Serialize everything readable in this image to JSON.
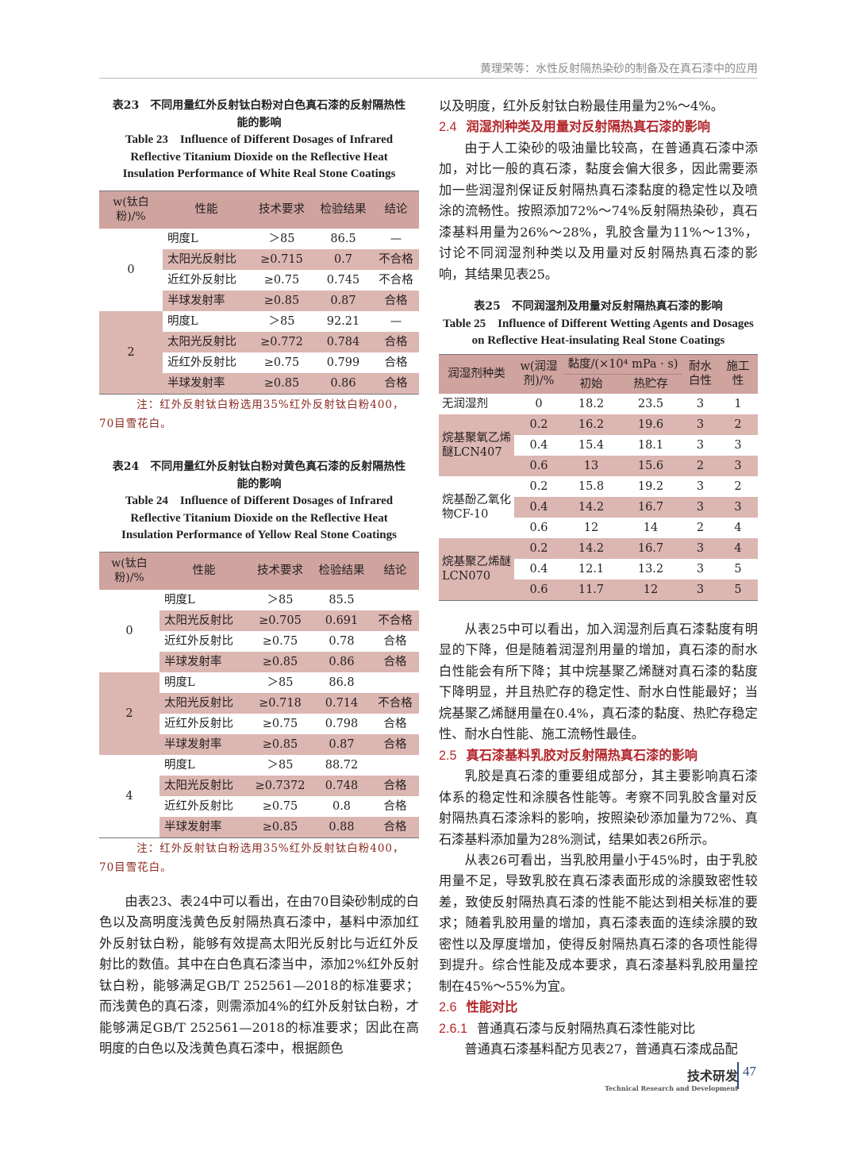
{
  "header": {
    "running_title": "黄理荣等：水性反射隔热染砂的制备及在真石漆中的应用"
  },
  "table23": {
    "caption_cn": "表23　不同用量红外反射钛白粉对白色真石漆的反射隔热性能的影响",
    "caption_en": "Table 23　Influence of Different Dosages of Infrared Reflective Titanium Dioxide on the Reflective Heat Insulation Performance of White Real Stone Coatings",
    "headers": [
      "w(钛白粉)/%",
      "性能",
      "技术要求",
      "检验结果",
      "结论"
    ],
    "groups": [
      {
        "w": "0",
        "rows": [
          [
            "明度L",
            "＞85",
            "86.5",
            "—"
          ],
          [
            "太阳光反射比",
            "≥0.715",
            "0.7",
            "不合格"
          ],
          [
            "近红外反射比",
            "≥0.75",
            "0.745",
            "不合格"
          ],
          [
            "半球发射率",
            "≥0.85",
            "0.87",
            "合格"
          ]
        ]
      },
      {
        "w": "2",
        "rows": [
          [
            "明度L",
            "＞85",
            "92.21",
            "—"
          ],
          [
            "太阳光反射比",
            "≥0.772",
            "0.784",
            "合格"
          ],
          [
            "近红外反射比",
            "≥0.75",
            "0.799",
            "合格"
          ],
          [
            "半球发射率",
            "≥0.85",
            "0.86",
            "合格"
          ]
        ]
      }
    ],
    "note": "注：红外反射钛白粉选用35%红外反射钛白粉400，70目雪花白。"
  },
  "table24": {
    "caption_cn": "表24　不同用量红外反射钛白粉对黄色真石漆的反射隔热性能的影响",
    "caption_en": "Table 24　Influence of Different Dosages of Infrared Reflective Titanium Dioxide on the Reflective Heat Insulation Performance of Yellow Real Stone Coatings",
    "headers": [
      "w(钛白粉)/%",
      "性能",
      "技术要求",
      "检验结果",
      "结论"
    ],
    "groups": [
      {
        "w": "0",
        "rows": [
          [
            "明度L",
            "＞85",
            "85.5",
            ""
          ],
          [
            "太阳光反射比",
            "≥0.705",
            "0.691",
            "不合格"
          ],
          [
            "近红外反射比",
            "≥0.75",
            "0.78",
            "合格"
          ],
          [
            "半球发射率",
            "≥0.85",
            "0.86",
            "合格"
          ]
        ]
      },
      {
        "w": "2",
        "rows": [
          [
            "明度L",
            "＞85",
            "86.8",
            ""
          ],
          [
            "太阳光反射比",
            "≥0.718",
            "0.714",
            "不合格"
          ],
          [
            "近红外反射比",
            "≥0.75",
            "0.798",
            "合格"
          ],
          [
            "半球发射率",
            "≥0.85",
            "0.87",
            "合格"
          ]
        ]
      },
      {
        "w": "4",
        "rows": [
          [
            "明度L",
            "＞85",
            "88.72",
            ""
          ],
          [
            "太阳光反射比",
            "≥0.7372",
            "0.748",
            "合格"
          ],
          [
            "近红外反射比",
            "≥0.75",
            "0.8",
            "合格"
          ],
          [
            "半球发射率",
            "≥0.85",
            "0.88",
            "合格"
          ]
        ]
      }
    ],
    "note": "注：红外反射钛白粉选用35%红外反射钛白粉400，70目雪花白。"
  },
  "left_body": "由表23、表24中可以看出，在由70目染砂制成的白色以及高明度浅黄色反射隔热真石漆中，基料中添加红外反射钛白粉，能够有效提高太阳光反射比与近红外反射比的数值。其中在白色真石漆当中，添加2%红外反射钛白粉，能够满足GB/T 252561—2018的标准要求；而浅黄色的真石漆，则需添加4%的红外反射钛白粉，才能够满足GB/T 252561—2018的标准要求；因此在高明度的白色以及浅黄色真石漆中，根据颜色",
  "right": {
    "cont": "以及明度，红外反射钛白粉最佳用量为2%～4%。",
    "s24": {
      "num": "2.4",
      "title": "润湿剂种类及用量对反射隔热真石漆的影响"
    },
    "p24": "由于人工染砂的吸油量比较高，在普通真石漆中添加，对比一般的真石漆，黏度会偏大很多，因此需要添加一些润湿剂保证反射隔热真石漆黏度的稳定性以及喷涂的流畅性。按照添加72%～74%反射隔热染砂，真石漆基料用量为26%～28%，乳胶含量为11%～13%，讨论不同润湿剂种类以及用量对反射隔热真石漆的影响，其结果见表25。",
    "p25a": "从表25中可以看出，加入润湿剂后真石漆黏度有明显的下降，但是随着润湿剂用量的增加，真石漆的耐水白性能会有所下降；其中烷基聚乙烯醚对真石漆的黏度下降明显，并且热贮存的稳定性、耐水白性能最好；当烷基聚乙烯醚用量在0.4%，真石漆的黏度、热贮存稳定性、耐水白性能、施工流畅性最佳。",
    "s25": {
      "num": "2.5",
      "title": "真石漆基料乳胶对反射隔热真石漆的影响"
    },
    "p25b": "乳胶是真石漆的重要组成部分，其主要影响真石漆体系的稳定性和涂膜各性能等。考察不同乳胶含量对反射隔热真石漆涂料的影响，按照染砂添加量为72%、真石漆基料添加量为28%测试，结果如表26所示。",
    "p25c": "从表26可看出，当乳胶用量小于45%时，由于乳胶用量不足，导致乳胶在真石漆表面形成的涂膜致密性较差，致使反射隔热真石漆的性能不能达到相关标准的要求；随着乳胶用量的增加，真石漆表面的连续涂膜的致密性以及厚度增加，使得反射隔热真石漆的各项性能得到提升。综合性能及成本要求，真石漆基料乳胶用量控制在45%～55%为宜。",
    "s26": {
      "num": "2.6",
      "title": "性能对比"
    },
    "s261": {
      "num": "2.6.1",
      "title": "普通真石漆与反射隔热真石漆性能对比"
    },
    "p261": "普通真石漆基料配方见表27，普通真石漆成品配"
  },
  "table25": {
    "caption_cn": "表25　不同润湿剂及用量对反射隔热真石漆的影响",
    "caption_en": "Table 25　Influence of Different Wetting Agents and Dosages on Reflective Heat-insulating Real Stone Coatings",
    "headers": {
      "kind": "润湿剂种类",
      "w": "w(润湿剂)/%",
      "viscosity": "黏度/(×10⁴ mPa · s)",
      "initial": "初始",
      "hot": "热贮存",
      "water": "耐水白性",
      "work": "施工性"
    },
    "groups": [
      {
        "kind": "无润湿剂",
        "rows": [
          [
            "0",
            "18.2",
            "23.5",
            "3",
            "1"
          ]
        ]
      },
      {
        "kind": "烷基聚氧乙烯醚LCN407",
        "rows": [
          [
            "0.2",
            "16.2",
            "19.6",
            "3",
            "2"
          ],
          [
            "0.4",
            "15.4",
            "18.1",
            "3",
            "3"
          ],
          [
            "0.6",
            "13",
            "15.6",
            "2",
            "3"
          ]
        ]
      },
      {
        "kind": "烷基酚乙氧化物CF-10",
        "rows": [
          [
            "0.2",
            "15.8",
            "19.2",
            "3",
            "2"
          ],
          [
            "0.4",
            "14.2",
            "16.7",
            "3",
            "3"
          ],
          [
            "0.6",
            "12",
            "14",
            "2",
            "4"
          ]
        ]
      },
      {
        "kind": "烷基聚乙烯醚LCN070",
        "rows": [
          [
            "0.2",
            "14.2",
            "16.7",
            "3",
            "4"
          ],
          [
            "0.4",
            "12.1",
            "13.2",
            "3",
            "5"
          ],
          [
            "0.6",
            "11.7",
            "12",
            "3",
            "5"
          ]
        ]
      }
    ]
  },
  "footer": {
    "section_cn": "技术研发",
    "section_en": "Technical Research and Development",
    "page": "47"
  },
  "colors": {
    "header_shade": "#cfa39e",
    "row_shade": "#dcb6b1",
    "heading_red": "#b3282d",
    "note_red": "#8b2a1f"
  }
}
